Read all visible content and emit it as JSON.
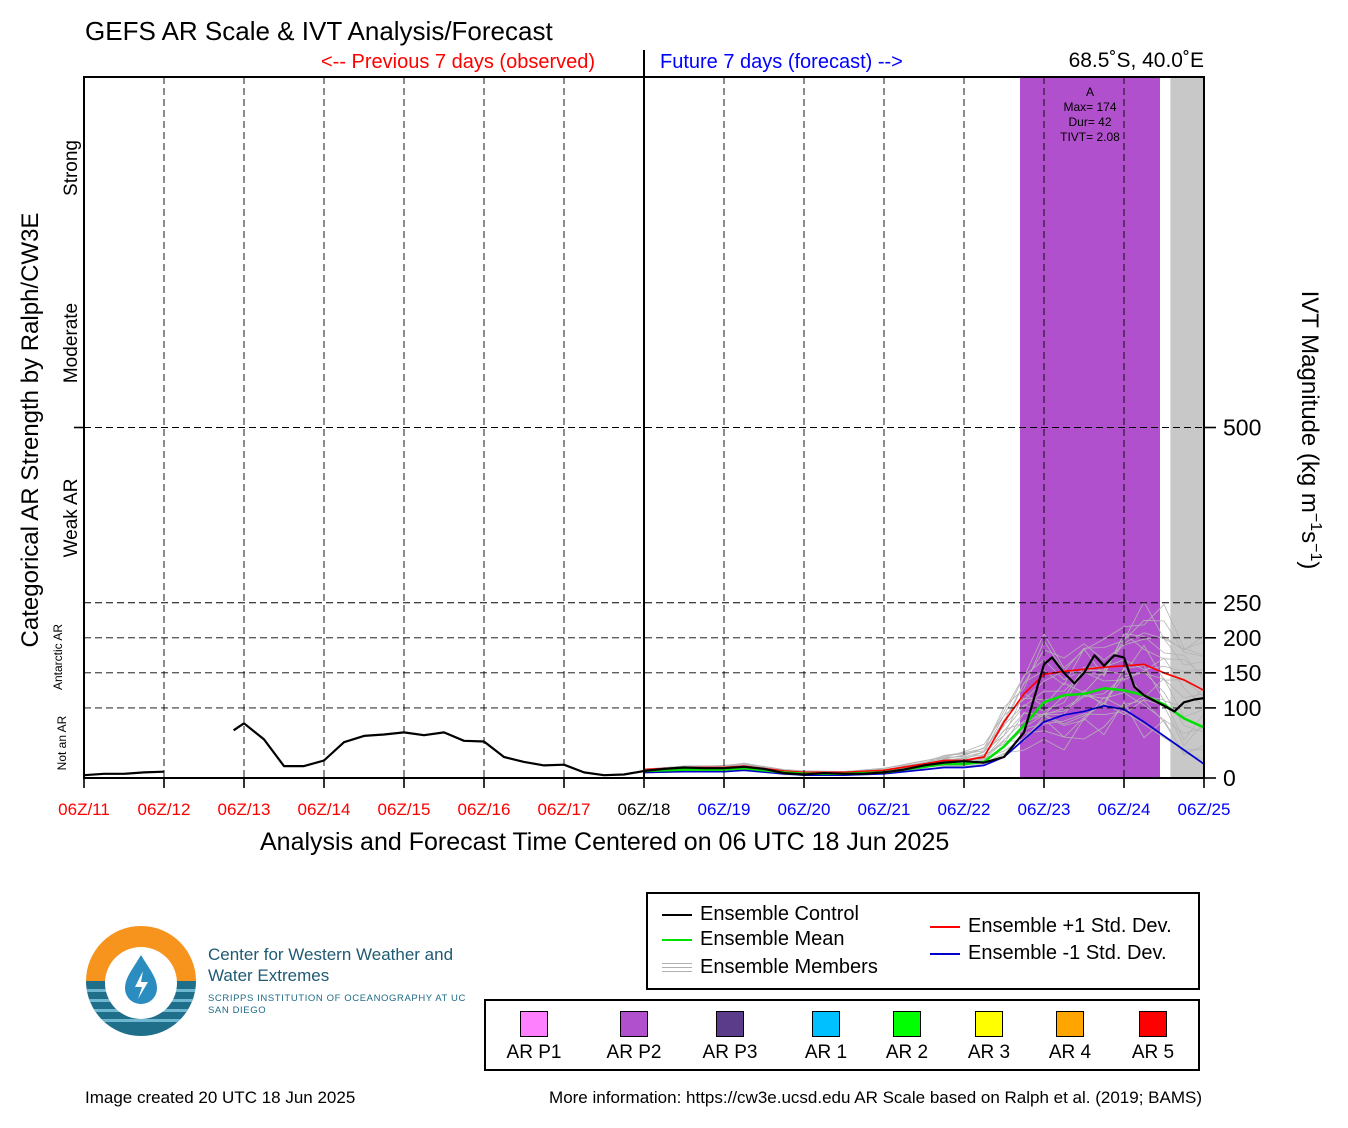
{
  "header": {
    "title": "GEFS AR Scale & IVT Analysis/Forecast",
    "previous_label": "<-- Previous 7 days (observed)",
    "future_label": "Future 7 days (forecast) -->",
    "location": "68.5˚S, 40.0˚E"
  },
  "chart_data": {
    "type": "line",
    "x_axis": {
      "label": "Analysis and Forecast Time Centered on 06 UTC 18 Jun 2025",
      "unit": "days relative to analysis time",
      "range": [
        -7,
        7
      ],
      "ticks": [
        {
          "day": -7,
          "label": "06Z/11",
          "color": "#ff0000"
        },
        {
          "day": -6,
          "label": "06Z/12",
          "color": "#ff0000"
        },
        {
          "day": -5,
          "label": "06Z/13",
          "color": "#ff0000"
        },
        {
          "day": -4,
          "label": "06Z/14",
          "color": "#ff0000"
        },
        {
          "day": -3,
          "label": "06Z/15",
          "color": "#ff0000"
        },
        {
          "day": -2,
          "label": "06Z/16",
          "color": "#ff0000"
        },
        {
          "day": -1,
          "label": "06Z/17",
          "color": "#ff0000"
        },
        {
          "day": 0,
          "label": "06Z/18",
          "color": "#000000"
        },
        {
          "day": 1,
          "label": "06Z/19",
          "color": "#0000ff"
        },
        {
          "day": 2,
          "label": "06Z/20",
          "color": "#0000ff"
        },
        {
          "day": 3,
          "label": "06Z/21",
          "color": "#0000ff"
        },
        {
          "day": 4,
          "label": "06Z/22",
          "color": "#0000ff"
        },
        {
          "day": 5,
          "label": "06Z/23",
          "color": "#0000ff"
        },
        {
          "day": 6,
          "label": "06Z/24",
          "color": "#0000ff"
        },
        {
          "day": 7,
          "label": "06Z/25",
          "color": "#0000ff"
        }
      ]
    },
    "y_axis_right": {
      "label_main": "IVT Magnitude (kg m",
      "label_exp1": "−1",
      "label_mid": "s",
      "label_exp2": "−1",
      "label_end": ")",
      "range": [
        0,
        1000
      ],
      "ticks": [
        0,
        100,
        150,
        200,
        250,
        500
      ],
      "tick_labels": [
        "0",
        "100",
        "150",
        "200",
        "250",
        "500"
      ]
    },
    "y_axis_left": {
      "label": "Categorical AR Strength by Ralph/CW3E",
      "categories": [
        {
          "label": "Not an AR",
          "center": 50
        },
        {
          "label": "Antarctic AR",
          "center": 150
        },
        {
          "label": "Weak AR",
          "center": 375
        },
        {
          "label": "Moderate",
          "center": 625
        },
        {
          "label": "Strong",
          "center": 875
        }
      ]
    },
    "grid": true,
    "ar_events": [
      {
        "start_day": 4.7,
        "end_day": 6.45,
        "category": "AR P2",
        "color": "#b150cc",
        "label": "A",
        "max": "Max= 174",
        "dur": "Dur= 42",
        "tivt": "TIVT= 2.08"
      },
      {
        "start_day": 6.58,
        "end_day": 7.0,
        "category": "beyond forecast",
        "color": "#c8c8c8"
      }
    ],
    "series": [
      {
        "name": "Ensemble Control",
        "color": "#000000",
        "width": 2.2,
        "segments": [
          [
            [
              -7.0,
              4
            ],
            [
              -6.75,
              6
            ],
            [
              -6.5,
              6
            ],
            [
              -6.25,
              8
            ],
            [
              -6.0,
              9
            ]
          ],
          [
            [
              -5.13,
              68
            ],
            [
              -5.0,
              78
            ],
            [
              -4.75,
              55
            ],
            [
              -4.5,
              17
            ],
            [
              -4.25,
              17
            ],
            [
              -4.0,
              25
            ],
            [
              -3.75,
              51
            ],
            [
              -3.5,
              60
            ],
            [
              -3.25,
              62
            ],
            [
              -3.0,
              65
            ],
            [
              -2.75,
              61
            ],
            [
              -2.5,
              65
            ],
            [
              -2.25,
              53
            ],
            [
              -2.0,
              52
            ],
            [
              -1.75,
              30
            ],
            [
              -1.5,
              23
            ],
            [
              -1.25,
              18
            ],
            [
              -1.0,
              19
            ],
            [
              -0.75,
              8
            ],
            [
              -0.5,
              4
            ],
            [
              -0.25,
              5
            ],
            [
              0.0,
              10
            ],
            [
              0.25,
              13
            ],
            [
              0.5,
              15
            ],
            [
              0.75,
              14
            ],
            [
              1.0,
              14
            ],
            [
              1.25,
              16
            ],
            [
              1.5,
              13
            ],
            [
              1.75,
              7
            ],
            [
              2.0,
              5
            ],
            [
              2.25,
              7
            ],
            [
              2.5,
              6
            ],
            [
              2.75,
              6
            ],
            [
              3.0,
              8
            ],
            [
              3.25,
              12
            ],
            [
              3.5,
              18
            ],
            [
              3.75,
              22
            ],
            [
              4.0,
              24
            ],
            [
              4.25,
              22
            ],
            [
              4.5,
              30
            ],
            [
              4.75,
              65
            ],
            [
              5.0,
              162
            ],
            [
              5.1,
              172
            ],
            [
              5.25,
              150
            ],
            [
              5.38,
              135
            ],
            [
              5.5,
              150
            ],
            [
              5.63,
              175
            ],
            [
              5.75,
              160
            ],
            [
              5.88,
              175
            ],
            [
              6.0,
              172
            ],
            [
              6.13,
              130
            ],
            [
              6.25,
              118
            ],
            [
              6.38,
              110
            ],
            [
              6.5,
              103
            ],
            [
              6.63,
              95
            ],
            [
              6.75,
              108
            ],
            [
              6.88,
              112
            ],
            [
              7.0,
              114
            ]
          ]
        ]
      },
      {
        "name": "Ensemble Mean",
        "color": "#00e000",
        "width": 2.5,
        "segments": [
          [
            [
              0.0,
              10
            ],
            [
              0.5,
              12
            ],
            [
              1.0,
              12
            ],
            [
              1.25,
              14
            ],
            [
              1.75,
              8
            ],
            [
              2.0,
              6
            ],
            [
              2.5,
              6
            ],
            [
              3.0,
              8
            ],
            [
              3.5,
              16
            ],
            [
              3.75,
              20
            ],
            [
              4.0,
              20
            ],
            [
              4.25,
              23
            ],
            [
              4.5,
              45
            ],
            [
              4.75,
              75
            ],
            [
              5.0,
              108
            ],
            [
              5.25,
              118
            ],
            [
              5.5,
              120
            ],
            [
              5.75,
              128
            ],
            [
              6.0,
              125
            ],
            [
              6.25,
              118
            ],
            [
              6.5,
              105
            ],
            [
              6.75,
              85
            ],
            [
              7.0,
              72
            ]
          ]
        ]
      },
      {
        "name": "Ensemble +1 Std. Dev.",
        "color": "#ff0000",
        "width": 1.7,
        "segments": [
          [
            [
              0.0,
              12
            ],
            [
              0.5,
              15
            ],
            [
              1.0,
              15
            ],
            [
              1.25,
              17
            ],
            [
              1.75,
              10
            ],
            [
              2.0,
              8
            ],
            [
              2.5,
              8
            ],
            [
              3.0,
              11
            ],
            [
              3.5,
              20
            ],
            [
              3.75,
              25
            ],
            [
              4.0,
              25
            ],
            [
              4.25,
              30
            ],
            [
              4.5,
              80
            ],
            [
              4.75,
              120
            ],
            [
              5.0,
              148
            ],
            [
              5.25,
              152
            ],
            [
              5.5,
              155
            ],
            [
              5.75,
              158
            ],
            [
              6.0,
              160
            ],
            [
              6.25,
              162
            ],
            [
              6.5,
              150
            ],
            [
              6.75,
              140
            ],
            [
              7.0,
              125
            ]
          ]
        ]
      },
      {
        "name": "Ensemble -1 Std. Dev.",
        "color": "#0000cc",
        "width": 1.7,
        "segments": [
          [
            [
              0.0,
              8
            ],
            [
              0.5,
              9
            ],
            [
              1.0,
              9
            ],
            [
              1.25,
              11
            ],
            [
              1.75,
              6
            ],
            [
              2.0,
              4
            ],
            [
              2.5,
              4
            ],
            [
              3.0,
              6
            ],
            [
              3.5,
              12
            ],
            [
              3.75,
              15
            ],
            [
              4.0,
              15
            ],
            [
              4.25,
              18
            ],
            [
              4.5,
              30
            ],
            [
              4.75,
              55
            ],
            [
              5.0,
              80
            ],
            [
              5.25,
              90
            ],
            [
              5.5,
              95
            ],
            [
              5.75,
              103
            ],
            [
              6.0,
              98
            ],
            [
              6.25,
              80
            ],
            [
              6.5,
              60
            ],
            [
              6.75,
              40
            ],
            [
              7.0,
              20
            ]
          ]
        ]
      }
    ],
    "members_band": {
      "name": "Ensemble Members",
      "color": "#b4b4b4",
      "x": [
        0.0,
        0.5,
        1.0,
        1.25,
        1.75,
        2.0,
        2.5,
        3.0,
        3.5,
        3.75,
        4.0,
        4.25,
        4.5,
        4.75,
        5.0,
        5.25,
        5.5,
        5.75,
        6.0,
        6.25,
        6.5,
        6.75,
        7.0
      ],
      "low": [
        6,
        8,
        8,
        9,
        4,
        3,
        3,
        5,
        10,
        12,
        13,
        15,
        20,
        25,
        10,
        30,
        40,
        55,
        60,
        45,
        30,
        15,
        5
      ],
      "high": [
        14,
        18,
        19,
        25,
        13,
        11,
        11,
        15,
        26,
        35,
        42,
        50,
        110,
        170,
        215,
        190,
        220,
        205,
        250,
        270,
        260,
        215,
        230
      ]
    }
  },
  "legend": {
    "control": "Ensemble Control",
    "mean": "Ensemble Mean",
    "members": "Ensemble Members",
    "plus_sd": "Ensemble +1 Std. Dev.",
    "minus_sd": "Ensemble -1 Std. Dev."
  },
  "categories_legend": [
    {
      "label": "AR P1",
      "color": "#ff80ff"
    },
    {
      "label": "AR P2",
      "color": "#b150cc"
    },
    {
      "label": "AR P3",
      "color": "#5a3c8a"
    },
    {
      "label": "AR 1",
      "color": "#00c0ff"
    },
    {
      "label": "AR 2",
      "color": "#00ff00"
    },
    {
      "label": "AR 3",
      "color": "#ffff00"
    },
    {
      "label": "AR 4",
      "color": "#ffa500"
    },
    {
      "label": "AR 5",
      "color": "#ff0000"
    }
  ],
  "org": {
    "name": "Center for Western Weather and Water Extremes",
    "sub": "SCRIPPS INSTITUTION OF OCEANOGRAPHY AT UC SAN DIEGO"
  },
  "footer": {
    "created": "Image created 20 UTC 18 Jun 2025",
    "more_info": "More information: https://cw3e.ucsd.edu AR Scale based on Ralph et al. (2019; BAMS)"
  }
}
